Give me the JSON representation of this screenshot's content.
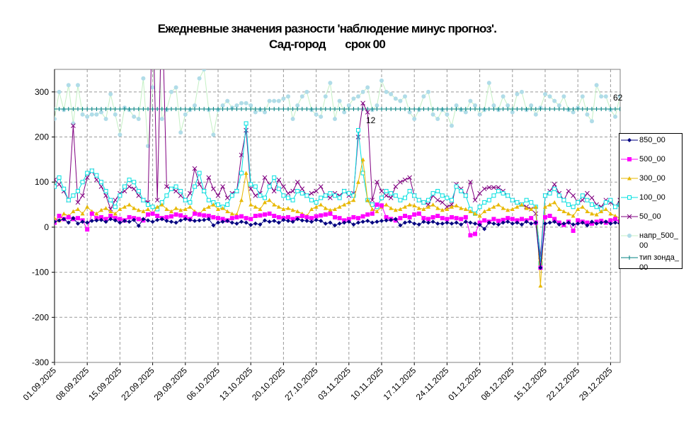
{
  "chart_data": {
    "type": "line",
    "title": [
      "Ежедневные значения разности 'наблюдение минус прогноз'.",
      "Сад-город       срок 00"
    ],
    "categories": [
      "01.09.2025",
      null,
      null,
      null,
      null,
      null,
      null,
      "08.09.2025",
      null,
      null,
      null,
      null,
      null,
      null,
      "15.09.2025",
      null,
      null,
      null,
      null,
      null,
      null,
      "22.09.2025",
      null,
      null,
      null,
      null,
      null,
      null,
      "29.09.2025",
      null,
      null,
      null,
      null,
      null,
      null,
      "06.10.2025",
      null,
      null,
      null,
      null,
      null,
      null,
      "13.10.2025",
      null,
      null,
      null,
      null,
      null,
      null,
      "20.10.2025",
      null,
      null,
      null,
      null,
      null,
      null,
      "27.10.2025",
      null,
      null,
      null,
      null,
      null,
      null,
      "03.11.2025",
      null,
      null,
      null,
      null,
      null,
      null,
      "10.11.2025",
      null,
      null,
      null,
      null,
      null,
      null,
      "17.11.2025",
      null,
      null,
      null,
      null,
      null,
      null,
      "24.11.2025",
      null,
      null,
      null,
      null,
      null,
      null,
      "01.12.2025",
      null,
      null,
      null,
      null,
      null,
      null,
      "08.12.2025",
      null,
      null,
      null,
      null,
      null,
      null,
      "15.12.2025",
      null,
      null,
      null,
      null,
      null,
      null,
      "22.12.2025",
      null,
      null,
      null,
      null,
      null,
      null,
      "29.12.2025",
      null,
      null
    ],
    "ylim": [
      -300,
      350
    ],
    "yticks": [
      -300,
      -200,
      -100,
      0,
      100,
      200,
      300
    ],
    "grid": true,
    "series": [
      {
        "name": "850_00",
        "color": "#000080",
        "marker": "diamond",
        "values": [
          12,
          15,
          18,
          10,
          20,
          8,
          12,
          10,
          14,
          15,
          16,
          12,
          18,
          15,
          10,
          14,
          12,
          16,
          3,
          18,
          15,
          12,
          16,
          18,
          14,
          12,
          10,
          15,
          18,
          16,
          14,
          15,
          16,
          18,
          4,
          10,
          12,
          14,
          10,
          8,
          12,
          10,
          5,
          8,
          6,
          15,
          12,
          14,
          10,
          16,
          14,
          12,
          18,
          15,
          14,
          12,
          16,
          14,
          8,
          10,
          4,
          8,
          10,
          12,
          6,
          10,
          12,
          14,
          10,
          12,
          14,
          15,
          16,
          18,
          4,
          10,
          12,
          8,
          6,
          12,
          10,
          12,
          8,
          8,
          10,
          8,
          10,
          6,
          12,
          10,
          8,
          5,
          -4,
          10,
          8,
          6,
          10,
          12,
          8,
          10,
          6,
          12,
          8,
          10,
          -90,
          8,
          10,
          12,
          6,
          8,
          10,
          6,
          8,
          10,
          4,
          12,
          8,
          10,
          12,
          8,
          10,
          8
        ]
      },
      {
        "name": "500_00",
        "color": "#ff00ff",
        "marker": "square",
        "values": [
          10,
          25,
          18,
          22,
          18,
          20,
          15,
          -5,
          30,
          20,
          22,
          18,
          25,
          20,
          18,
          15,
          22,
          20,
          18,
          15,
          28,
          30,
          25,
          20,
          22,
          24,
          28,
          26,
          22,
          18,
          30,
          28,
          26,
          25,
          22,
          20,
          18,
          15,
          20,
          22,
          24,
          20,
          18,
          25,
          26,
          28,
          30,
          25,
          22,
          20,
          22,
          18,
          20,
          25,
          22,
          20,
          24,
          26,
          28,
          30,
          22,
          20,
          15,
          18,
          22,
          20,
          24,
          28,
          30,
          50,
          48,
          22,
          18,
          15,
          20,
          25,
          22,
          28,
          30,
          20,
          18,
          22,
          25,
          20,
          18,
          22,
          20,
          18,
          22,
          -18,
          -15,
          10,
          15,
          12,
          18,
          14,
          16,
          20,
          18,
          15,
          18,
          15,
          20,
          10,
          -90,
          22,
          25,
          18,
          10,
          5,
          12,
          -8,
          15,
          12,
          10,
          8,
          12,
          14,
          10,
          15,
          18,
          12
        ]
      },
      {
        "name": "300_00",
        "color": "#e8b800",
        "marker": "triangle",
        "values": [
          20,
          15,
          30,
          25,
          35,
          40,
          30,
          45,
          35,
          30,
          38,
          42,
          35,
          30,
          40,
          45,
          50,
          42,
          38,
          35,
          40,
          30,
          45,
          50,
          40,
          35,
          42,
          38,
          40,
          45,
          35,
          30,
          40,
          45,
          50,
          40,
          42,
          35,
          30,
          28,
          60,
          120,
          50,
          45,
          40,
          55,
          60,
          50,
          45,
          40,
          42,
          38,
          35,
          30,
          25,
          40,
          45,
          50,
          42,
          38,
          40,
          45,
          50,
          55,
          60,
          100,
          150,
          60,
          40,
          35,
          45,
          50,
          42,
          38,
          40,
          45,
          50,
          48,
          42,
          40,
          45,
          50,
          42,
          38,
          40,
          45,
          48,
          42,
          40,
          35,
          30,
          25,
          35,
          40,
          45,
          50,
          42,
          38,
          40,
          45,
          50,
          42,
          40,
          45,
          -130,
          45,
          50,
          55,
          40,
          35,
          30,
          25,
          40,
          45,
          35,
          30,
          28,
          35,
          40,
          30,
          25,
          20
        ]
      },
      {
        "name": "100_00",
        "color": "#00e0e0",
        "marker": "hollow-square",
        "values": [
          90,
          110,
          85,
          60,
          70,
          80,
          100,
          120,
          125,
          115,
          100,
          80,
          60,
          45,
          70,
          90,
          105,
          100,
          80,
          60,
          50,
          45,
          40,
          55,
          70,
          85,
          90,
          80,
          60,
          55,
          90,
          120,
          80,
          60,
          55,
          50,
          45,
          50,
          70,
          80,
          120,
          230,
          95,
          90,
          70,
          65,
          90,
          110,
          85,
          70,
          65,
          60,
          80,
          75,
          70,
          60,
          55,
          65,
          70,
          75,
          70,
          65,
          80,
          75,
          70,
          215,
          120,
          60,
          50,
          45,
          65,
          80,
          75,
          70,
          60,
          65,
          80,
          70,
          60,
          55,
          60,
          75,
          80,
          70,
          65,
          60,
          90,
          80,
          70,
          40,
          30,
          45,
          55,
          60,
          70,
          80,
          75,
          70,
          60,
          55,
          50,
          60,
          55,
          45,
          -80,
          70,
          75,
          85,
          70,
          60,
          50,
          45,
          55,
          70,
          60,
          50,
          45,
          40,
          55,
          60,
          45,
          50
        ]
      },
      {
        "name": "50_00",
        "color": "#800080",
        "marker": "x",
        "values": [
          105,
          95,
          80,
          60,
          225,
          55,
          70,
          110,
          125,
          105,
          90,
          70,
          40,
          60,
          75,
          80,
          90,
          85,
          70,
          60,
          55,
          500,
          60,
          500,
          90,
          85,
          80,
          70,
          60,
          75,
          130,
          95,
          80,
          110,
          85,
          70,
          90,
          65,
          75,
          80,
          160,
          215,
          85,
          70,
          75,
          110,
          95,
          80,
          105,
          90,
          75,
          80,
          100,
          85,
          70,
          75,
          80,
          90,
          70,
          65,
          75,
          70,
          80,
          70,
          75,
          200,
          275,
          255,
          60,
          100,
          80,
          70,
          65,
          90,
          100,
          105,
          110,
          70,
          60,
          55,
          50,
          70,
          60,
          55,
          45,
          50,
          95,
          85,
          70,
          100,
          60,
          75,
          85,
          88,
          88,
          88,
          80,
          70,
          60,
          55,
          50,
          45,
          40,
          30,
          -65,
          70,
          80,
          95,
          75,
          60,
          80,
          70,
          55,
          60,
          75,
          65,
          50,
          45,
          60,
          55,
          45,
          60
        ]
      },
      {
        "name": "напр_500_00",
        "color": "#b0dce8",
        "line_color": "#c4f0c4",
        "marker": "circle",
        "values": [
          240,
          300,
          260,
          315,
          230,
          315,
          250,
          245,
          250,
          250,
          255,
          240,
          295,
          250,
          205,
          265,
          260,
          245,
          240,
          330,
          180,
          310,
          500,
          240,
          260,
          300,
          310,
          210,
          250,
          260,
          270,
          330,
          350,
          260,
          205,
          260,
          270,
          280,
          265,
          270,
          275,
          275,
          270,
          255,
          260,
          255,
          280,
          280,
          280,
          285,
          290,
          240,
          270,
          290,
          300,
          260,
          250,
          245,
          290,
          320,
          240,
          280,
          255,
          270,
          285,
          290,
          300,
          310,
          260,
          270,
          325,
          300,
          295,
          285,
          280,
          290,
          255,
          240,
          260,
          290,
          300,
          250,
          240,
          260,
          250,
          225,
          270,
          260,
          255,
          280,
          270,
          250,
          260,
          320,
          270,
          260,
          290,
          270,
          255,
          295,
          300,
          260,
          270,
          250,
          265,
          295,
          290,
          280,
          270,
          290,
          260,
          255,
          265,
          290,
          250,
          235,
          315,
          290,
          290,
          260,
          245,
          290
        ]
      },
      {
        "name": "тип зонда_00",
        "color": "#008080",
        "marker": "plus",
        "values": [
          262,
          262,
          262,
          262,
          262,
          262,
          262,
          262,
          262,
          262,
          262,
          262,
          262,
          262,
          262,
          262,
          262,
          262,
          262,
          262,
          262,
          262,
          262,
          262,
          262,
          262,
          262,
          262,
          262,
          262,
          262,
          262,
          262,
          262,
          262,
          262,
          262,
          262,
          262,
          262,
          262,
          262,
          262,
          262,
          262,
          262,
          262,
          262,
          262,
          262,
          262,
          262,
          262,
          262,
          262,
          262,
          262,
          262,
          262,
          262,
          262,
          262,
          262,
          262,
          262,
          262,
          262,
          262,
          262,
          262,
          262,
          262,
          262,
          262,
          262,
          262,
          262,
          262,
          262,
          262,
          262,
          262,
          262,
          262,
          262,
          262,
          262,
          262,
          262,
          262,
          262,
          262,
          262,
          262,
          262,
          262,
          262,
          262,
          262,
          262,
          262,
          262,
          262,
          262,
          262,
          262,
          262,
          262,
          262,
          262,
          262,
          262,
          262,
          262,
          262,
          262,
          262,
          262,
          262,
          262,
          262,
          262
        ]
      }
    ],
    "annotations": [
      "62",
      "12"
    ]
  }
}
